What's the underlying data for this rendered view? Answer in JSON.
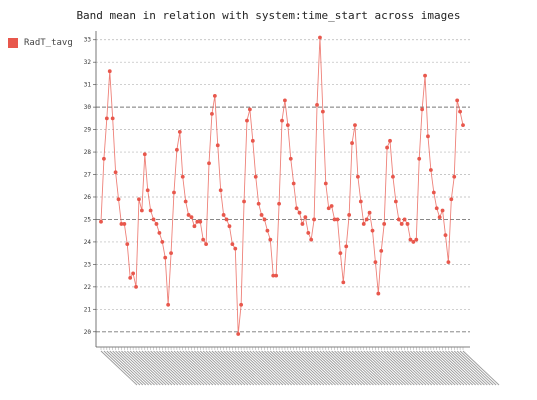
{
  "chart_data": {
    "type": "line",
    "title": "Band mean in relation with system:time_start across images",
    "series": [
      {
        "name": "RadT_tavg",
        "color": "#e8574c",
        "values": [
          24.9,
          27.7,
          29.5,
          31.6,
          29.5,
          27.1,
          25.9,
          24.8,
          24.8,
          23.9,
          22.4,
          22.6,
          22.0,
          25.9,
          25.4,
          27.9,
          26.3,
          25.4,
          25.0,
          24.8,
          24.4,
          24.0,
          23.3,
          21.2,
          23.5,
          26.2,
          28.1,
          28.9,
          26.9,
          25.8,
          25.2,
          25.1,
          24.7,
          24.9,
          24.9,
          24.1,
          23.9,
          27.5,
          29.7,
          30.5,
          28.3,
          26.3,
          25.2,
          25.0,
          24.7,
          23.9,
          23.7,
          19.9,
          21.2,
          25.8,
          29.4,
          29.9,
          28.5,
          26.9,
          25.7,
          25.2,
          25.0,
          24.5,
          24.1,
          22.5,
          22.5,
          25.7,
          29.4,
          30.3,
          29.2,
          27.7,
          26.6,
          25.5,
          25.3,
          24.8,
          25.1,
          24.4,
          24.1,
          25.0,
          30.1,
          33.1,
          29.8,
          26.6,
          25.5,
          25.6,
          25.0,
          25.0,
          23.5,
          22.2,
          23.8,
          25.2,
          28.4,
          29.2,
          26.9,
          25.8,
          24.8,
          25.0,
          25.3,
          24.5,
          23.1,
          21.7,
          23.6,
          24.8,
          28.2,
          28.5,
          26.9,
          25.8,
          25.0,
          24.8,
          25.0,
          24.8,
          24.1,
          24.0,
          24.1,
          27.7,
          29.9,
          31.4,
          28.7,
          27.2,
          26.2,
          25.5,
          25.1,
          25.4,
          24.3,
          23.1,
          25.9,
          26.9,
          30.3,
          29.8,
          29.2
        ]
      }
    ],
    "ylim": [
      19.5,
      33.3
    ],
    "yticks": [
      20,
      21,
      22,
      23,
      24,
      25,
      26,
      27,
      28,
      29,
      30,
      31,
      32,
      33
    ],
    "major_grid": [
      20,
      25,
      30
    ],
    "grid": true,
    "legend_position": "top-left"
  }
}
